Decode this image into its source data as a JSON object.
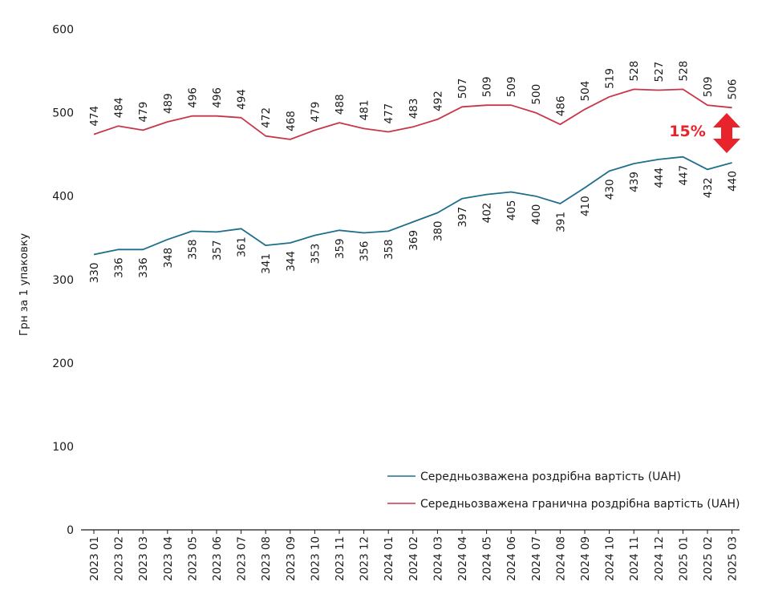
{
  "chart_data": {
    "type": "line",
    "ylabel": "Грн за 1 упаковку",
    "ylim": [
      0,
      600
    ],
    "yticks": [
      "0",
      "100",
      "200",
      "300",
      "400",
      "500",
      "600"
    ],
    "grid": false,
    "legend_position": "bottom-right",
    "categories": [
      "2023 01",
      "2023 02",
      "2023 03",
      "2023 04",
      "2023 05",
      "2023 06",
      "2023 07",
      "2023 08",
      "2023 09",
      "2023 10",
      "2023 11",
      "2023 12",
      "2024 01",
      "2024 02",
      "2024 03",
      "2024 04",
      "2024 05",
      "2024 06",
      "2024 07",
      "2024 08",
      "2024 09",
      "2024 10",
      "2024 11",
      "2024 12",
      "2025 01",
      "2025 02",
      "2025 03"
    ],
    "series": [
      {
        "name": "Середньозважена роздрібна вартість (UAH)",
        "color": "#1f6e8c",
        "label_position": "below",
        "values": [
          330,
          336,
          336,
          348,
          358,
          357,
          361,
          341,
          344,
          353,
          359,
          356,
          358,
          369,
          380,
          397,
          402,
          405,
          400,
          391,
          410,
          430,
          439,
          444,
          447,
          432,
          440
        ]
      },
      {
        "name": "Середньозважена гранична роздрібна вартість (UAH)",
        "color": "#c8364a",
        "label_position": "above",
        "values": [
          474,
          484,
          479,
          489,
          496,
          496,
          494,
          472,
          468,
          479,
          488,
          481,
          477,
          483,
          492,
          507,
          509,
          509,
          500,
          486,
          504,
          519,
          528,
          527,
          528,
          509,
          506
        ]
      }
    ],
    "annotation": {
      "text": "15%",
      "color": "#e8232b"
    }
  }
}
